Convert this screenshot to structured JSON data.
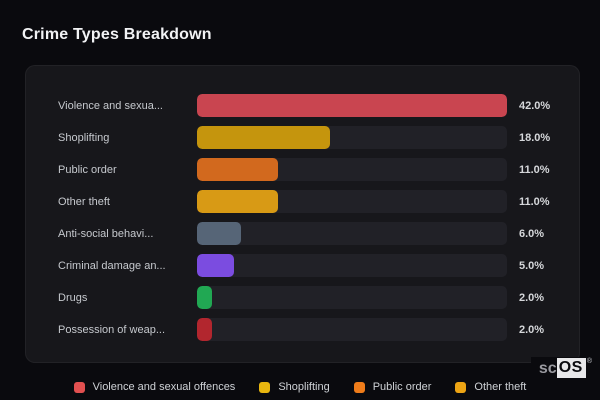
{
  "page": {
    "title": "Crime Types Breakdown",
    "background": "#0a0a0e",
    "card_background": "#17171b",
    "track_color": "#212127"
  },
  "watermark": {
    "prefix": "sc",
    "boxed": "OS",
    "registered": "®"
  },
  "chart_data": {
    "type": "bar",
    "orientation": "horizontal",
    "title": "Crime Types Breakdown",
    "grid": false,
    "scale_max": 42,
    "categories": [
      "Violence and sexua...",
      "Shoplifting",
      "Public order",
      "Other theft",
      "Anti-social behavi...",
      "Criminal damage an...",
      "Drugs",
      "Possession of weap..."
    ],
    "values": [
      42.0,
      18.0,
      11.0,
      11.0,
      6.0,
      5.0,
      2.0,
      2.0
    ],
    "value_labels": [
      "42.0%",
      "18.0%",
      "11.0%",
      "11.0%",
      "6.0%",
      "5.0%",
      "2.0%",
      "2.0%"
    ],
    "bar_colors": [
      "#c94550",
      "#c5950d",
      "#d2691e",
      "#d89a15",
      "#566577",
      "#7b4ce0",
      "#21a853",
      "#b2262e"
    ],
    "legend": {
      "position": "bottom",
      "entries": [
        {
          "label": "Violence and sexual offences",
          "color": "#e25050"
        },
        {
          "label": "Shoplifting",
          "color": "#e8b60f"
        },
        {
          "label": "Public order",
          "color": "#ef7c1a"
        },
        {
          "label": "Other theft",
          "color": "#eda414"
        }
      ]
    }
  }
}
